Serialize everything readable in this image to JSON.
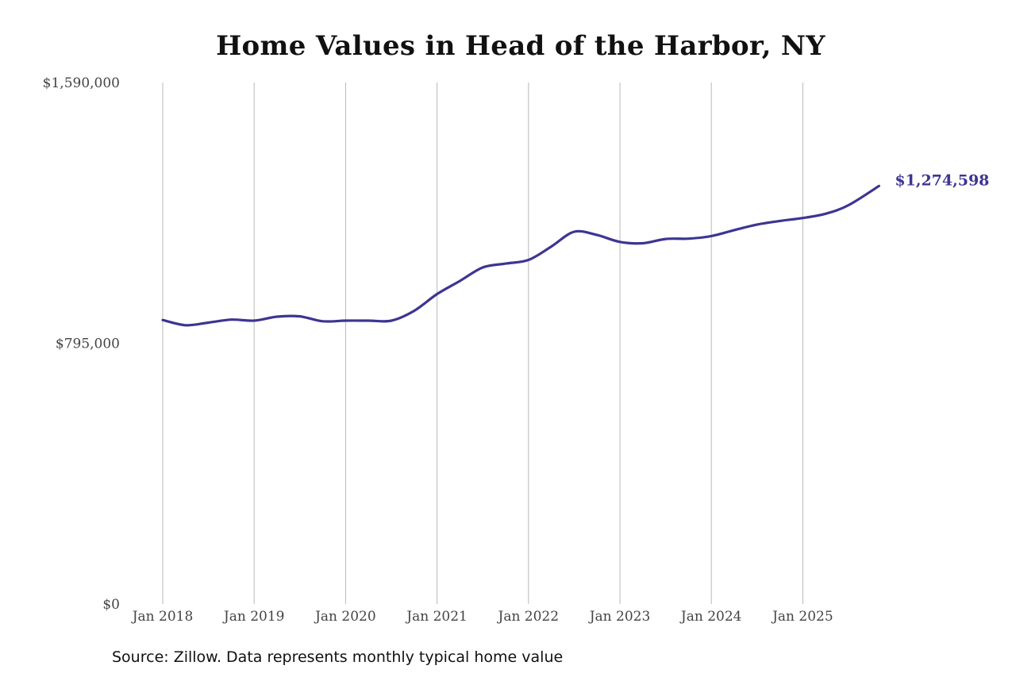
{
  "chart_data": {
    "type": "line",
    "title": "Home Values in Head of the Harbor, NY",
    "xlabel": "",
    "ylabel": "",
    "ylim": [
      0,
      1590000
    ],
    "y_ticks": [
      {
        "value": 0,
        "label": "$0"
      },
      {
        "value": 795000,
        "label": "$795,000"
      },
      {
        "value": 1590000,
        "label": "$1,590,000"
      }
    ],
    "x_range": [
      "2018-01",
      "2025-11"
    ],
    "x_ticks": [
      {
        "date": "2018-01",
        "label": "Jan 2018"
      },
      {
        "date": "2019-01",
        "label": "Jan 2019"
      },
      {
        "date": "2020-01",
        "label": "Jan 2020"
      },
      {
        "date": "2021-01",
        "label": "Jan 2021"
      },
      {
        "date": "2022-01",
        "label": "Jan 2022"
      },
      {
        "date": "2023-01",
        "label": "Jan 2023"
      },
      {
        "date": "2024-01",
        "label": "Jan 2024"
      },
      {
        "date": "2025-01",
        "label": "Jan 2025"
      }
    ],
    "grid": {
      "vertical": true,
      "horizontal": false
    },
    "line_color": "#3d3592",
    "end_label": "$1,274,598",
    "series": [
      {
        "points": [
          {
            "x": "2018-01",
            "y": 866000
          },
          {
            "x": "2018-04",
            "y": 850000
          },
          {
            "x": "2018-07",
            "y": 858000
          },
          {
            "x": "2018-10",
            "y": 867000
          },
          {
            "x": "2019-01",
            "y": 864000
          },
          {
            "x": "2019-04",
            "y": 876000
          },
          {
            "x": "2019-07",
            "y": 877000
          },
          {
            "x": "2019-10",
            "y": 862000
          },
          {
            "x": "2020-01",
            "y": 864000
          },
          {
            "x": "2020-04",
            "y": 864000
          },
          {
            "x": "2020-07",
            "y": 864000
          },
          {
            "x": "2020-10",
            "y": 894000
          },
          {
            "x": "2021-01",
            "y": 945000
          },
          {
            "x": "2021-04",
            "y": 985000
          },
          {
            "x": "2021-07",
            "y": 1026000
          },
          {
            "x": "2021-10",
            "y": 1038000
          },
          {
            "x": "2022-01",
            "y": 1049000
          },
          {
            "x": "2022-04",
            "y": 1090000
          },
          {
            "x": "2022-07",
            "y": 1135000
          },
          {
            "x": "2022-10",
            "y": 1125000
          },
          {
            "x": "2023-01",
            "y": 1104000
          },
          {
            "x": "2023-04",
            "y": 1100000
          },
          {
            "x": "2023-07",
            "y": 1113000
          },
          {
            "x": "2023-10",
            "y": 1114000
          },
          {
            "x": "2024-01",
            "y": 1122000
          },
          {
            "x": "2024-04",
            "y": 1140000
          },
          {
            "x": "2024-07",
            "y": 1157000
          },
          {
            "x": "2024-10",
            "y": 1168000
          },
          {
            "x": "2025-01",
            "y": 1177000
          },
          {
            "x": "2025-04",
            "y": 1190000
          },
          {
            "x": "2025-07",
            "y": 1216000
          },
          {
            "x": "2025-11",
            "y": 1274598
          }
        ]
      }
    ]
  },
  "footer": {
    "source": "Source: Zillow. Data represents monthly typical home value"
  }
}
